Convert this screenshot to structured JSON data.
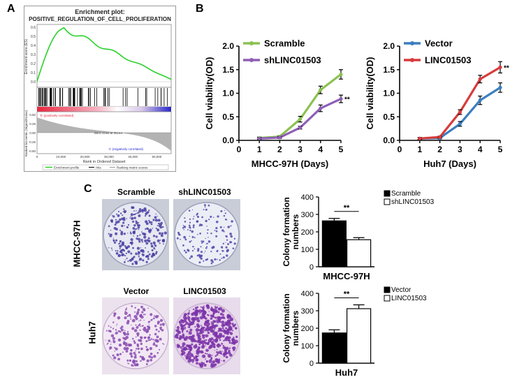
{
  "panel_labels": {
    "a": "A",
    "b": "B",
    "c": "C"
  },
  "gsea": {
    "title_line1": "Enrichment plot:",
    "title_line2": "POSITIVE_REGULATION_OF_CELL_PROLIFERATION",
    "es_ylabel": "Enrichment score (ES)",
    "es_ticks": [
      "0.6",
      "0.5",
      "0.4",
      "0.3",
      "0.2",
      "0.1",
      "0.0"
    ],
    "metric_ylabel": "Ranked list metric (Signal2Noise)",
    "metric_ticks": [
      "0.50",
      "0.25",
      "0.00",
      "-0.25",
      "-0.50"
    ],
    "pos_corr": "'0' (positively correlated)",
    "neg_corr": "'1' (negatively correlated)",
    "zero_cross": "Zero cross at 35164",
    "x_ticks": [
      "0",
      "10,000",
      "20,000",
      "30,000",
      "40,000",
      "50,000"
    ],
    "xlabel": "Rank in Ordered Dataset",
    "legend": [
      "Enrichment profile",
      "Hits",
      "Ranking metric scores"
    ],
    "colors": {
      "es_line": "#2bd12b",
      "pos": "#e8243c",
      "neg": "#2626c9"
    }
  },
  "chart_data": [
    {
      "id": "mhcc-growth",
      "type": "line",
      "title": "",
      "xlabel": "MHCC-97H (Days)",
      "ylabel": "Cell viability(OD)",
      "x": [
        1,
        2,
        3,
        4,
        5
      ],
      "x_ticks": [
        "0",
        "1",
        "2",
        "3",
        "4",
        "5"
      ],
      "y_ticks": [
        "0.0",
        "0.5",
        "1.0",
        "1.5",
        "2.0"
      ],
      "xlim": [
        0,
        5
      ],
      "ylim": [
        0,
        2.0
      ],
      "legend_position": "top-left",
      "series": [
        {
          "name": "Scramble",
          "color": "#8cc152",
          "values": [
            0.05,
            0.08,
            0.45,
            1.07,
            1.4
          ],
          "errors": [
            0.02,
            0.02,
            0.06,
            0.08,
            0.1
          ]
        },
        {
          "name": "shLINC01503",
          "color": "#8e5fb6",
          "values": [
            0.04,
            0.06,
            0.27,
            0.68,
            0.88
          ],
          "errors": [
            0.02,
            0.02,
            0.03,
            0.07,
            0.08
          ]
        }
      ],
      "annotation": "**"
    },
    {
      "id": "huh7-growth",
      "type": "line",
      "title": "",
      "xlabel": "Huh7 (Days)",
      "ylabel": "Cell viability(OD)",
      "x": [
        1,
        2,
        3,
        4,
        5
      ],
      "x_ticks": [
        "0",
        "1",
        "2",
        "3",
        "4",
        "5"
      ],
      "y_ticks": [
        "0.0",
        "0.5",
        "1.0",
        "1.5",
        "2.0"
      ],
      "xlim": [
        0,
        5
      ],
      "ylim": [
        0,
        2.0
      ],
      "legend_position": "top-left",
      "series": [
        {
          "name": "Vector",
          "color": "#3a7fc0",
          "values": [
            0.04,
            0.05,
            0.35,
            0.85,
            1.12
          ],
          "errors": [
            0.02,
            0.02,
            0.05,
            0.09,
            0.1
          ]
        },
        {
          "name": "LINC01503",
          "color": "#d73b3b",
          "values": [
            0.04,
            0.07,
            0.6,
            1.3,
            1.55
          ],
          "errors": [
            0.02,
            0.02,
            0.05,
            0.08,
            0.12
          ]
        }
      ],
      "annotation": "**"
    },
    {
      "id": "mhcc-colony",
      "type": "bar",
      "xlabel": "MHCC-97H",
      "ylabel": "Colony formation numbers",
      "categories": [
        "Scramble",
        "shLINC01503"
      ],
      "values": [
        263,
        155
      ],
      "errors": [
        14,
        12
      ],
      "fills": [
        "#000000",
        "#ffffff"
      ],
      "y_ticks": [
        "0",
        "100",
        "200",
        "300",
        "400"
      ],
      "ylim": [
        0,
        400
      ],
      "legend_position": "top-right",
      "annotation": "**"
    },
    {
      "id": "huh7-colony",
      "type": "bar",
      "xlabel": "Huh7",
      "ylabel": "Colony formation numbers",
      "categories": [
        "Vector",
        "LINC01503"
      ],
      "values": [
        173,
        312
      ],
      "errors": [
        18,
        22
      ],
      "fills": [
        "#000000",
        "#ffffff"
      ],
      "y_ticks": [
        "0",
        "100",
        "200",
        "300",
        "400"
      ],
      "ylim": [
        0,
        400
      ],
      "legend_position": "top-right",
      "annotation": "**"
    }
  ],
  "colony": {
    "row1_label": "MHCC-97H",
    "row2_label": "Huh7",
    "dish_labels": [
      "Scramble",
      "shLINC01503",
      "Vector",
      "LINC01503"
    ]
  }
}
